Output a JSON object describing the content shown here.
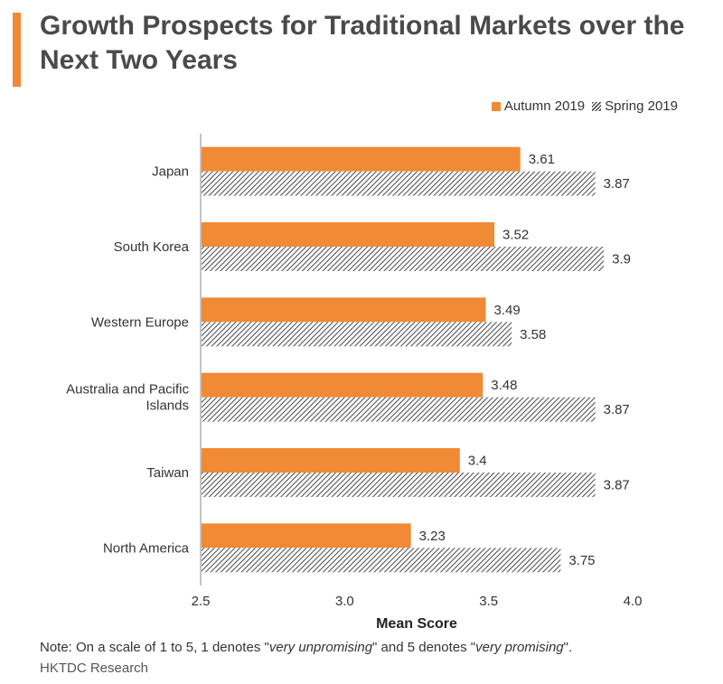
{
  "title": "Growth Prospects for Traditional Markets over the Next Two Years",
  "legend": {
    "autumn": "Autumn 2019",
    "spring": "Spring 2019"
  },
  "colors": {
    "autumn": "#f08a34",
    "spring_hatch": "#555555",
    "axis": "#888888"
  },
  "chart_data": {
    "type": "bar",
    "orientation": "horizontal",
    "categories": [
      "Japan",
      "South Korea",
      "Western Europe",
      "Australia and Pacific Islands",
      "Taiwan",
      "North America"
    ],
    "series": [
      {
        "name": "Autumn 2019",
        "values": [
          3.61,
          3.52,
          3.49,
          3.48,
          3.4,
          3.23
        ],
        "labels": [
          "3.61",
          "3.52",
          "3.49",
          "3.48",
          "3.4",
          "3.23"
        ]
      },
      {
        "name": "Spring 2019",
        "values": [
          3.87,
          3.9,
          3.58,
          3.87,
          3.87,
          3.75
        ],
        "labels": [
          "3.87",
          "3.9",
          "3.58",
          "3.87",
          "3.87",
          "3.75"
        ]
      }
    ],
    "xlabel": "Mean Score",
    "xlim": [
      2.5,
      4.0
    ],
    "xticks": [
      2.5,
      3.0,
      3.5,
      4.0
    ],
    "xtick_labels": [
      "2.5",
      "3.0",
      "3.5",
      "4.0"
    ],
    "legend_position": "top-right"
  },
  "note": {
    "prefix": "Note: On a scale of 1 to 5, 1 denotes \"",
    "term1": "very unpromising",
    "middle": "\" and 5 denotes \"",
    "term2": "very promising",
    "suffix": "\"."
  },
  "source": "HKTDC Research"
}
